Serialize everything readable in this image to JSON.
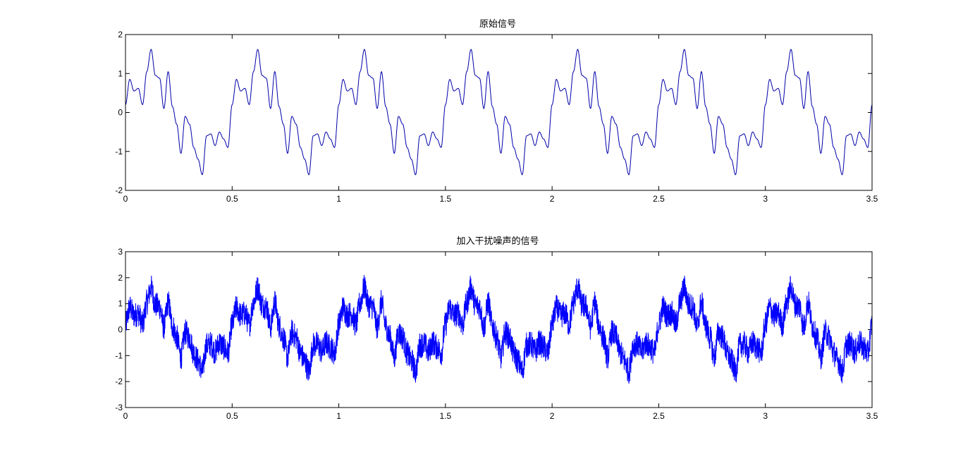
{
  "chart_data": [
    {
      "type": "line",
      "title": "原始信号",
      "xlabel": "",
      "ylabel": "",
      "xlim": [
        0,
        3.5
      ],
      "ylim": [
        -2,
        2
      ],
      "xticks": [
        "0",
        "0.5",
        "1",
        "1.5",
        "2",
        "2.5",
        "3",
        "3.5"
      ],
      "yticks": [
        "2",
        "1",
        "0",
        "-1",
        "-2"
      ],
      "grid": false,
      "series": [
        {
          "color": "#0000aa",
          "period": 0.5,
          "x": [
            0.0,
            0.02,
            0.04,
            0.06,
            0.08,
            0.1,
            0.12,
            0.14,
            0.16,
            0.18,
            0.2,
            0.22,
            0.24,
            0.26,
            0.28,
            0.3,
            0.32,
            0.34,
            0.36,
            0.38,
            0.4,
            0.42,
            0.44,
            0.46,
            0.48,
            0.5
          ],
          "values": [
            0.2,
            0.85,
            0.55,
            0.62,
            0.2,
            1.05,
            1.62,
            0.95,
            0.88,
            0.1,
            1.05,
            0.15,
            -0.3,
            -1.05,
            -0.1,
            -0.3,
            -0.9,
            -1.2,
            -1.6,
            -0.6,
            -0.55,
            -0.85,
            -0.5,
            -0.68,
            -0.9,
            0.2
          ]
        }
      ]
    },
    {
      "type": "line",
      "title": "加入干扰噪声的信号",
      "xlabel": "",
      "ylabel": "",
      "xlim": [
        0,
        3.5
      ],
      "ylim": [
        -3,
        3
      ],
      "xticks": [
        "0",
        "0.5",
        "1",
        "1.5",
        "2",
        "2.5",
        "3",
        "3.5"
      ],
      "yticks": [
        "3",
        "2",
        "1",
        "0",
        "-1",
        "-2",
        "-3"
      ],
      "grid": false,
      "series": [
        {
          "color": "#0000ff",
          "noise_amplitude": 0.5,
          "period": 0.5,
          "x": [
            0.0,
            0.02,
            0.04,
            0.06,
            0.08,
            0.1,
            0.12,
            0.14,
            0.16,
            0.18,
            0.2,
            0.22,
            0.24,
            0.26,
            0.28,
            0.3,
            0.32,
            0.34,
            0.36,
            0.38,
            0.4,
            0.42,
            0.44,
            0.46,
            0.48,
            0.5
          ],
          "values": [
            0.2,
            0.85,
            0.55,
            0.62,
            0.2,
            1.05,
            1.62,
            0.95,
            0.88,
            0.1,
            1.05,
            0.15,
            -0.3,
            -1.05,
            -0.1,
            -0.3,
            -0.9,
            -1.2,
            -1.6,
            -0.6,
            -0.55,
            -0.85,
            -0.5,
            -0.68,
            -0.9,
            0.2
          ]
        }
      ]
    }
  ]
}
